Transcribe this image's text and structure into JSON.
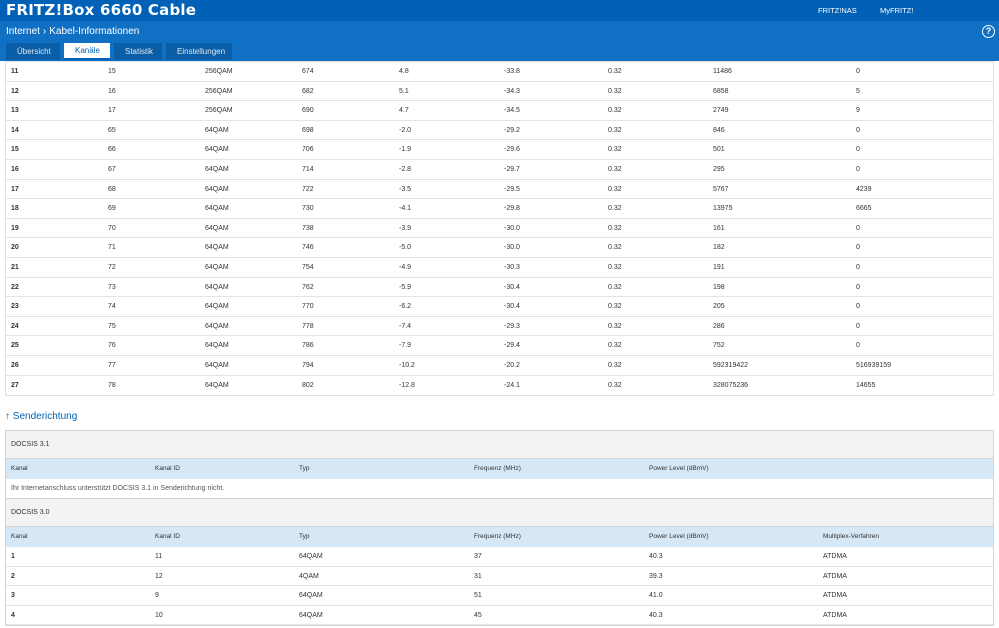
{
  "header": {
    "brand": "FRITZ!Box 6660 Cable",
    "nav": [
      "FRITZ!NAS",
      "MyFRITZ!"
    ]
  },
  "breadcrumb": {
    "root": "Internet",
    "sep": "›",
    "current": "Kabel-Informationen"
  },
  "help": "?",
  "tabs": [
    {
      "label": "Übersicht",
      "active": false
    },
    {
      "label": "Kanäle",
      "active": true
    },
    {
      "label": "Statistik",
      "active": false
    },
    {
      "label": "Einstellungen",
      "active": false
    }
  ],
  "downstream_rows": [
    [
      "11",
      "15",
      "256QAM",
      "674",
      "4.8",
      "-33.8",
      "0.32",
      "11486",
      "0"
    ],
    [
      "12",
      "16",
      "256QAM",
      "682",
      "5.1",
      "-34.3",
      "0.32",
      "6858",
      "5"
    ],
    [
      "13",
      "17",
      "256QAM",
      "690",
      "4.7",
      "-34.5",
      "0.32",
      "2749",
      "9"
    ],
    [
      "14",
      "65",
      "64QAM",
      "698",
      "-2.0",
      "-29.2",
      "0.32",
      "846",
      "0"
    ],
    [
      "15",
      "66",
      "64QAM",
      "706",
      "-1.9",
      "-29.6",
      "0.32",
      "501",
      "0"
    ],
    [
      "16",
      "67",
      "64QAM",
      "714",
      "-2.8",
      "-29.7",
      "0.32",
      "295",
      "0"
    ],
    [
      "17",
      "68",
      "64QAM",
      "722",
      "-3.5",
      "-29.5",
      "0.32",
      "5767",
      "4239"
    ],
    [
      "18",
      "69",
      "64QAM",
      "730",
      "-4.1",
      "-29.8",
      "0.32",
      "13975",
      "6665"
    ],
    [
      "19",
      "70",
      "64QAM",
      "738",
      "-3.9",
      "-30.0",
      "0.32",
      "161",
      "0"
    ],
    [
      "20",
      "71",
      "64QAM",
      "746",
      "-5.0",
      "-30.0",
      "0.32",
      "182",
      "0"
    ],
    [
      "21",
      "72",
      "64QAM",
      "754",
      "-4.9",
      "-30.3",
      "0.32",
      "191",
      "0"
    ],
    [
      "22",
      "73",
      "64QAM",
      "762",
      "-5.9",
      "-30.4",
      "0.32",
      "198",
      "0"
    ],
    [
      "23",
      "74",
      "64QAM",
      "770",
      "-6.2",
      "-30.4",
      "0.32",
      "205",
      "0"
    ],
    [
      "24",
      "75",
      "64QAM",
      "778",
      "-7.4",
      "-29.3",
      "0.32",
      "286",
      "0"
    ],
    [
      "25",
      "76",
      "64QAM",
      "786",
      "-7.9",
      "-29.4",
      "0.32",
      "752",
      "0"
    ],
    [
      "26",
      "77",
      "64QAM",
      "794",
      "-10.2",
      "-20.2",
      "0.32",
      "592319422",
      "516939159"
    ],
    [
      "27",
      "78",
      "64QAM",
      "802",
      "-12.8",
      "-24.1",
      "0.32",
      "328075236",
      "14655"
    ]
  ],
  "upstream": {
    "title": "↑ Senderichtung",
    "docsis31": {
      "label": "DOCSIS 3.1",
      "headers": [
        "Kanal",
        "Kanal ID",
        "Typ",
        "Frequenz (MHz)",
        "Power Level (dBmV)"
      ],
      "note": "Ihr Internetanschluss unterstützt DOCSIS 3.1 in Senderichtung nicht."
    },
    "docsis30": {
      "label": "DOCSIS 3.0",
      "headers": [
        "Kanal",
        "Kanal ID",
        "Typ",
        "Frequenz (MHz)",
        "Power Level (dBmV)",
        "Multiplex-Verfahren"
      ],
      "rows": [
        [
          "1",
          "11",
          "64QAM",
          "37",
          "40.3",
          "ATDMA"
        ],
        [
          "2",
          "12",
          "4QAM",
          "31",
          "39.3",
          "ATDMA"
        ],
        [
          "3",
          "9",
          "64QAM",
          "51",
          "41.0",
          "ATDMA"
        ],
        [
          "4",
          "10",
          "64QAM",
          "45",
          "40.3",
          "ATDMA"
        ]
      ]
    }
  }
}
